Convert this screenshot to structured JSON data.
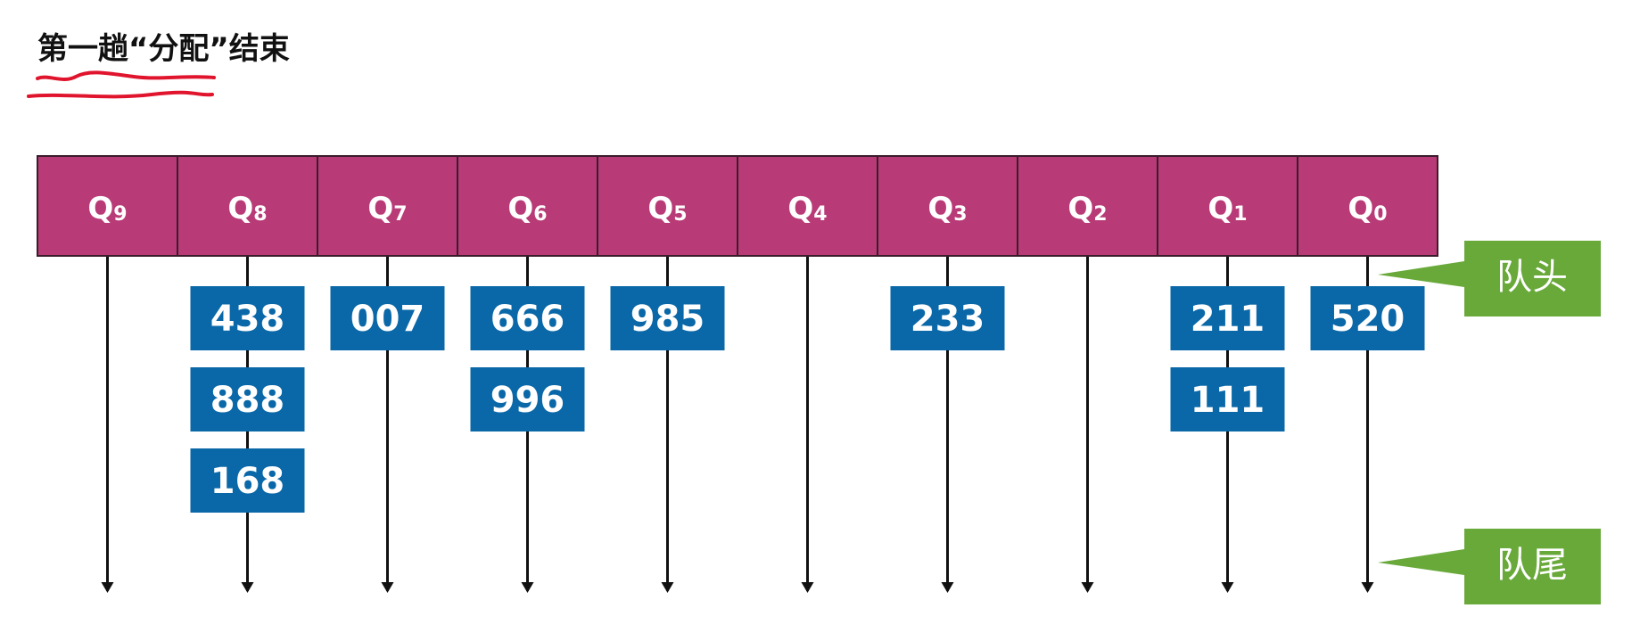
{
  "title": "第一趟“分配”结束",
  "colors": {
    "queue_header": "#b83b77",
    "queue_border": "#3a1d2c",
    "number_box": "#0a68a8",
    "callout": "#68a93a",
    "arrow": "#111111",
    "annotation": "#e0142d"
  },
  "queues": [
    {
      "name": "Q",
      "index": "9",
      "items": []
    },
    {
      "name": "Q",
      "index": "8",
      "items": [
        "438",
        "888",
        "168"
      ]
    },
    {
      "name": "Q",
      "index": "7",
      "items": [
        "007"
      ]
    },
    {
      "name": "Q",
      "index": "6",
      "items": [
        "666",
        "996"
      ]
    },
    {
      "name": "Q",
      "index": "5",
      "items": [
        "985"
      ]
    },
    {
      "name": "Q",
      "index": "4",
      "items": []
    },
    {
      "name": "Q",
      "index": "3",
      "items": [
        "233"
      ]
    },
    {
      "name": "Q",
      "index": "2",
      "items": []
    },
    {
      "name": "Q",
      "index": "1",
      "items": [
        "211",
        "111"
      ]
    },
    {
      "name": "Q",
      "index": "0",
      "items": [
        "520"
      ]
    }
  ],
  "callouts": {
    "head": "队头",
    "tail": "队尾"
  }
}
